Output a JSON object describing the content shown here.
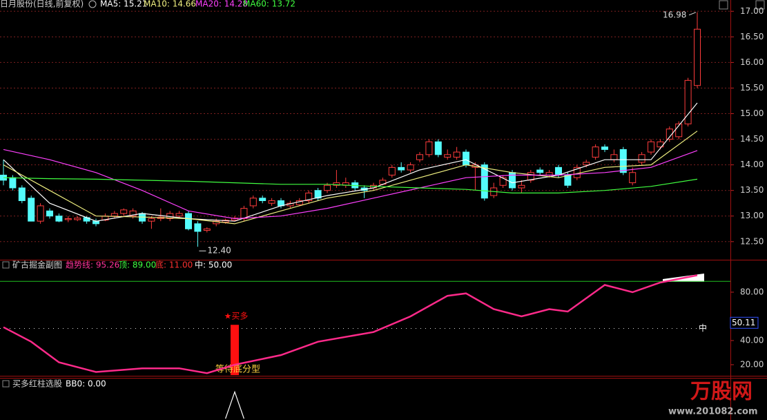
{
  "chart_data": [
    {
      "type": "candlestick",
      "title": "日月股份(日线,前复权)",
      "indicators": [
        {
          "label": "MA5: 15.21",
          "color": "#ffffff"
        },
        {
          "label": "MA10: 14.66",
          "color": "#f0f080"
        },
        {
          "label": "MA20: 14.28",
          "color": "#ff40ff"
        },
        {
          "label": "MA60: 13.72",
          "color": "#40ff40"
        }
      ],
      "open": [
        13.8,
        13.75,
        13.55,
        13.35,
        12.9,
        13.1,
        13.0,
        12.93,
        12.93,
        12.97,
        12.9,
        12.92,
        13.0,
        13.05,
        13.0,
        13.05,
        12.9,
        12.95,
        12.95,
        13.0,
        13.05,
        12.85,
        12.72,
        12.85,
        12.88,
        12.92,
        12.95,
        13.2,
        13.35,
        13.25,
        13.3,
        13.2,
        13.22,
        13.3,
        13.5,
        13.5,
        13.6,
        13.6,
        13.65,
        13.55,
        13.55,
        13.62,
        13.8,
        13.95,
        13.9,
        14.1,
        14.2,
        14.45,
        14.15,
        14.15,
        14.25,
        13.95,
        14.0,
        13.4,
        13.6,
        13.85,
        13.55,
        13.7,
        13.9,
        13.8,
        13.95,
        13.8,
        13.75,
        14.0,
        14.15,
        14.35,
        14.1,
        14.3,
        13.65,
        14.05,
        14.25,
        14.35,
        14.5,
        14.55,
        14.8,
        15.55
      ],
      "high": [
        14.1,
        13.8,
        13.6,
        13.4,
        13.25,
        13.15,
        13.05,
        13.0,
        13.0,
        13.0,
        12.95,
        13.05,
        13.1,
        13.15,
        13.15,
        13.08,
        13.0,
        13.15,
        13.1,
        13.1,
        13.1,
        12.9,
        12.78,
        12.95,
        12.95,
        13.0,
        13.2,
        13.4,
        13.4,
        13.35,
        13.35,
        13.3,
        13.35,
        13.5,
        13.55,
        13.65,
        13.9,
        13.75,
        13.7,
        13.6,
        13.65,
        13.75,
        14.0,
        14.05,
        14.05,
        14.25,
        14.5,
        14.5,
        14.3,
        14.35,
        14.3,
        14.05,
        14.05,
        13.65,
        13.8,
        13.9,
        13.7,
        13.9,
        13.95,
        13.9,
        14.0,
        13.85,
        14.0,
        14.1,
        14.4,
        14.4,
        14.3,
        14.35,
        13.95,
        14.25,
        14.5,
        14.5,
        14.75,
        14.85,
        15.7,
        16.98
      ],
      "low": [
        13.6,
        13.5,
        13.25,
        12.9,
        12.85,
        12.95,
        12.88,
        12.88,
        12.9,
        12.85,
        12.8,
        12.9,
        12.95,
        13.0,
        12.95,
        12.85,
        12.75,
        12.9,
        12.9,
        12.95,
        12.72,
        12.4,
        12.68,
        12.8,
        12.85,
        12.9,
        12.9,
        13.15,
        13.25,
        13.2,
        13.15,
        13.15,
        13.2,
        13.25,
        13.3,
        13.45,
        13.55,
        13.55,
        13.5,
        13.35,
        13.5,
        13.6,
        13.75,
        13.85,
        13.85,
        14.05,
        14.15,
        14.15,
        14.1,
        14.1,
        13.95,
        13.5,
        13.3,
        13.35,
        13.55,
        13.5,
        13.45,
        13.65,
        13.8,
        13.75,
        13.75,
        13.55,
        13.7,
        13.95,
        14.1,
        14.25,
        14.05,
        13.8,
        13.6,
        14.0,
        14.2,
        14.3,
        14.45,
        14.5,
        14.75,
        15.5
      ],
      "close": [
        13.7,
        13.55,
        13.3,
        12.9,
        13.2,
        13.0,
        12.9,
        12.95,
        12.96,
        12.9,
        12.85,
        13.0,
        13.05,
        13.12,
        13.1,
        12.9,
        12.95,
        12.98,
        13.05,
        13.05,
        12.75,
        12.7,
        12.75,
        12.9,
        12.92,
        12.96,
        13.15,
        13.35,
        13.3,
        13.3,
        13.2,
        13.25,
        13.3,
        13.45,
        13.35,
        13.6,
        13.65,
        13.65,
        13.55,
        13.5,
        13.6,
        13.7,
        13.95,
        13.9,
        14.0,
        14.2,
        14.45,
        14.2,
        14.2,
        14.25,
        14.0,
        14.0,
        13.35,
        13.55,
        13.75,
        13.55,
        13.6,
        13.85,
        13.85,
        13.85,
        13.8,
        13.6,
        13.95,
        14.05,
        14.35,
        14.3,
        14.2,
        13.85,
        13.85,
        14.2,
        14.45,
        14.45,
        14.7,
        14.8,
        15.65,
        16.65
      ],
      "up_color": "#ff3c3c",
      "down_color": "#54fcfc",
      "series": [
        {
          "color": "#ffffff",
          "x": [
            0,
            5,
            10,
            15,
            20,
            25,
            30,
            35,
            40,
            45,
            50,
            55,
            60,
            65,
            70,
            75
          ],
          "values": [
            14.1,
            13.25,
            12.9,
            13.05,
            12.95,
            12.9,
            13.2,
            13.4,
            13.55,
            13.9,
            14.1,
            13.65,
            13.8,
            14.1,
            14.1,
            15.21
          ]
        },
        {
          "color": "#f0f080",
          "x": [
            0,
            5,
            10,
            15,
            20,
            25,
            30,
            35,
            40,
            45,
            50,
            55,
            60,
            65,
            70,
            75
          ],
          "values": [
            14.0,
            13.5,
            13.0,
            12.98,
            12.95,
            12.85,
            13.1,
            13.35,
            13.5,
            13.75,
            14.0,
            13.85,
            13.75,
            13.95,
            14.0,
            14.66
          ]
        },
        {
          "color": "#ff40ff",
          "x": [
            0,
            5,
            10,
            15,
            20,
            25,
            30,
            35,
            40,
            45,
            50,
            55,
            60,
            65,
            70,
            75
          ],
          "values": [
            14.3,
            14.1,
            13.85,
            13.5,
            13.1,
            12.95,
            13.0,
            13.15,
            13.35,
            13.55,
            13.75,
            13.8,
            13.8,
            13.85,
            13.95,
            14.28
          ]
        },
        {
          "color": "#40ff40",
          "x": [
            0,
            5,
            10,
            15,
            20,
            25,
            30,
            35,
            40,
            45,
            50,
            55,
            60,
            65,
            70,
            75
          ],
          "values": [
            13.75,
            13.73,
            13.72,
            13.7,
            13.68,
            13.65,
            13.62,
            13.62,
            13.58,
            13.55,
            13.52,
            13.45,
            13.45,
            13.5,
            13.58,
            13.72
          ]
        }
      ],
      "ylim": [
        12.16,
        17.22
      ],
      "yticks": [
        {
          "value": 12.5,
          "label": "12.50"
        },
        {
          "value": 13,
          "label": "13.00"
        },
        {
          "value": 13.5,
          "label": "13.50"
        },
        {
          "value": 14,
          "label": "14.00"
        },
        {
          "value": 14.5,
          "label": "14.50"
        },
        {
          "value": 15,
          "label": "15.00"
        },
        {
          "value": 15.5,
          "label": "15.50"
        },
        {
          "value": 16,
          "label": "16.00"
        },
        {
          "value": 16.5,
          "label": "16.50"
        },
        {
          "value": 17,
          "label": "17.00"
        }
      ],
      "grid": true,
      "annotations": [
        {
          "x": 75,
          "value": 16.98,
          "label": "16.98"
        },
        {
          "x": 21,
          "value": 12.4,
          "label": "12.40"
        }
      ]
    },
    {
      "type": "line",
      "title": "矿古掘金副图",
      "indicators": [
        {
          "label": "趋势线: 95.26",
          "color": "#ff3399"
        },
        {
          "label": "顶: 89.00",
          "color": "#40ff40"
        },
        {
          "label": "底: 11.00",
          "color": "#ff3030"
        },
        {
          "label": "中: 50.00",
          "color": "#ffffff"
        }
      ],
      "series": [
        {
          "color": "#ff2a8a",
          "x": [
            0,
            3,
            6,
            10,
            15,
            19,
            22,
            25,
            30,
            34,
            40,
            44,
            48,
            50,
            53,
            56,
            59,
            61,
            65,
            68,
            71,
            75
          ],
          "values": [
            51,
            39,
            22,
            14,
            17,
            17,
            13,
            20,
            28,
            39,
            47,
            60,
            77,
            79,
            66,
            60,
            66,
            64,
            86,
            80,
            88,
            94
          ]
        }
      ],
      "top_line": 89,
      "mid_line": 50,
      "mid_label": "中",
      "signal": {
        "x": 25,
        "value": 53,
        "label": "★买多",
        "note": "等待底分型",
        "color": "#ff1010"
      },
      "cursor": {
        "value": 50.11,
        "label": "50.11"
      },
      "ylim": [
        11.4,
        105.7
      ],
      "yticks": [
        {
          "value": 20,
          "label": "20.00"
        },
        {
          "value": 40,
          "label": "40.00"
        },
        {
          "value": 80,
          "label": "80.00"
        }
      ]
    },
    {
      "type": "line",
      "title": "买多红柱选股",
      "indicators": [
        {
          "label": "BB0: 0.00",
          "color": "#ffffff"
        }
      ],
      "series": [
        {
          "color": "#ffffff",
          "x": [
            24,
            25,
            26
          ],
          "values": [
            0,
            1,
            0
          ]
        }
      ],
      "ylim": [
        0,
        1.5
      ]
    }
  ],
  "watermark": {
    "brand": "万股网",
    "url": "www.201082.com"
  }
}
